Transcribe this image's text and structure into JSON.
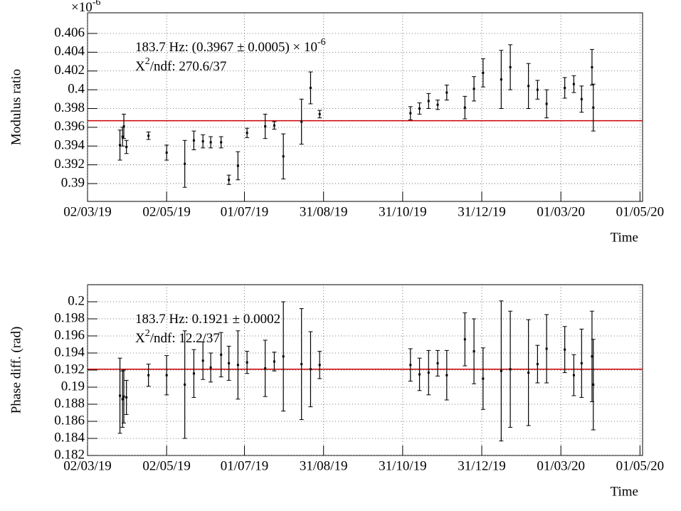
{
  "chart_data": [
    {
      "type": "scatter",
      "ylabel": "Modulus ratio",
      "xlabel": "Time",
      "multiplier": {
        "text": "×10",
        "sup": "-6"
      },
      "annotation": {
        "text": "183.7 Hz: (0.3967  ± 0.0005)  × 10",
        "sup": "-6"
      },
      "chi2": {
        "symbol": "X",
        "sup": "2",
        "text": "/ndf: 270.6/37"
      },
      "fit_value": 0.3967,
      "fit_color": "#cc0000",
      "color": "#000000",
      "grid": true,
      "xlim": [
        "2019-03-02",
        "2020-05-03"
      ],
      "xticks": [
        {
          "value": "2019-03-02",
          "label": "02/03/19"
        },
        {
          "value": "2019-05-02",
          "label": "02/05/19"
        },
        {
          "value": "2019-07-01",
          "label": "01/07/19"
        },
        {
          "value": "2019-08-31",
          "label": "31/08/19"
        },
        {
          "value": "2019-10-31",
          "label": "31/10/19"
        },
        {
          "value": "2019-12-31",
          "label": "31/12/19"
        },
        {
          "value": "2020-03-01",
          "label": "01/03/20"
        },
        {
          "value": "2020-05-01",
          "label": "01/05/20"
        }
      ],
      "ylim": [
        0.3881,
        0.4082
      ],
      "yticks": [
        0.39,
        0.392,
        0.394,
        0.396,
        0.398,
        0.4,
        0.402,
        0.404,
        0.406
      ],
      "x": [
        "2019-03-27",
        "2019-03-29",
        "2019-03-30",
        "2019-04-01",
        "2019-04-18",
        "2019-05-02",
        "2019-05-16",
        "2019-05-23",
        "2019-05-30",
        "2019-06-05",
        "2019-06-13",
        "2019-06-19",
        "2019-06-26",
        "2019-07-03",
        "2019-07-17",
        "2019-07-24",
        "2019-07-31",
        "2019-08-14",
        "2019-08-21",
        "2019-08-28",
        "2019-11-06",
        "2019-11-13",
        "2019-11-20",
        "2019-11-27",
        "2019-12-04",
        "2019-12-18",
        "2019-12-25",
        "2020-01-01",
        "2020-01-15",
        "2020-01-22",
        "2020-02-05",
        "2020-02-12",
        "2020-02-19",
        "2020-03-04",
        "2020-03-11",
        "2020-03-17",
        "2020-03-25",
        "2020-03-26"
      ],
      "values": [
        0.3941,
        0.395,
        0.3961,
        0.3939,
        0.3951,
        0.3933,
        0.3921,
        0.3946,
        0.3945,
        0.3944,
        0.3944,
        0.3904,
        0.3919,
        0.3954,
        0.3961,
        0.3962,
        0.3929,
        0.3966,
        0.4002,
        0.3974,
        0.3975,
        0.398,
        0.3988,
        0.3984,
        0.3997,
        0.3981,
        0.4001,
        0.4018,
        0.4011,
        0.4024,
        0.4004,
        0.4,
        0.3985,
        0.4002,
        0.4006,
        0.399,
        0.4024,
        0.3981
      ],
      "errors": [
        0.0016,
        0.001,
        0.0013,
        0.0007,
        0.0004,
        0.0008,
        0.0025,
        0.001,
        0.0007,
        0.0006,
        0.0006,
        0.0005,
        0.0015,
        0.0005,
        0.0013,
        0.0004,
        0.0024,
        0.0024,
        0.0017,
        0.0004,
        0.0007,
        0.0006,
        0.0008,
        0.0005,
        0.0008,
        0.0012,
        0.0013,
        0.0015,
        0.0031,
        0.0024,
        0.0024,
        0.001,
        0.0015,
        0.0011,
        0.0009,
        0.0014,
        0.0019,
        0.0025
      ]
    },
    {
      "type": "scatter",
      "ylabel": "Phase diff. (rad)",
      "xlabel": "Time",
      "annotation": {
        "text": "183.7 Hz: 0.1921  ± 0.0002"
      },
      "chi2": {
        "symbol": "X",
        "sup": "2",
        "text": "/ndf: 12.2/37"
      },
      "fit_value": 0.1921,
      "fit_color": "#cc0000",
      "color": "#000000",
      "grid": true,
      "xlim": [
        "2019-03-02",
        "2020-05-03"
      ],
      "xticks": [
        {
          "value": "2019-03-02",
          "label": "02/03/19"
        },
        {
          "value": "2019-05-02",
          "label": "02/05/19"
        },
        {
          "value": "2019-07-01",
          "label": "01/07/19"
        },
        {
          "value": "2019-08-31",
          "label": "31/08/19"
        },
        {
          "value": "2019-10-31",
          "label": "31/10/19"
        },
        {
          "value": "2019-12-31",
          "label": "31/12/19"
        },
        {
          "value": "2020-03-01",
          "label": "01/03/20"
        },
        {
          "value": "2020-05-01",
          "label": "01/05/20"
        }
      ],
      "ylim": [
        0.182,
        0.202
      ],
      "yticks": [
        0.182,
        0.184,
        0.186,
        0.188,
        0.19,
        0.192,
        0.194,
        0.196,
        0.198,
        0.2
      ],
      "x": [
        "2019-03-27",
        "2019-03-29",
        "2019-03-30",
        "2019-04-01",
        "2019-04-18",
        "2019-05-02",
        "2019-05-16",
        "2019-05-23",
        "2019-05-30",
        "2019-06-05",
        "2019-06-13",
        "2019-06-19",
        "2019-06-26",
        "2019-07-03",
        "2019-07-17",
        "2019-07-24",
        "2019-07-31",
        "2019-08-14",
        "2019-08-21",
        "2019-08-28",
        "2019-11-06",
        "2019-11-13",
        "2019-11-20",
        "2019-11-27",
        "2019-12-04",
        "2019-12-18",
        "2019-12-25",
        "2020-01-01",
        "2020-01-15",
        "2020-01-22",
        "2020-02-05",
        "2020-02-12",
        "2020-02-19",
        "2020-03-04",
        "2020-03-11",
        "2020-03-17",
        "2020-03-25",
        "2020-03-26"
      ],
      "values": [
        0.189,
        0.1886,
        0.1889,
        0.1888,
        0.1914,
        0.1914,
        0.1903,
        0.1916,
        0.1931,
        0.1923,
        0.1938,
        0.1928,
        0.1926,
        0.1929,
        0.1922,
        0.193,
        0.1936,
        0.1927,
        0.1921,
        0.1926,
        0.1926,
        0.1915,
        0.1917,
        0.1928,
        0.1914,
        0.1956,
        0.1942,
        0.191,
        0.1919,
        0.1921,
        0.1917,
        0.1927,
        0.1945,
        0.1944,
        0.1914,
        0.1928,
        0.1936,
        0.1903
      ],
      "errors": [
        0.0044,
        0.0033,
        0.0031,
        0.002,
        0.0013,
        0.0023,
        0.0063,
        0.0028,
        0.0022,
        0.0017,
        0.0026,
        0.002,
        0.004,
        0.0013,
        0.0033,
        0.0011,
        0.0064,
        0.0065,
        0.0044,
        0.0016,
        0.0019,
        0.0019,
        0.0026,
        0.0015,
        0.0029,
        0.0031,
        0.0038,
        0.0036,
        0.0082,
        0.0068,
        0.0062,
        0.0022,
        0.004,
        0.0027,
        0.0024,
        0.004,
        0.0053,
        0.0053
      ]
    }
  ]
}
